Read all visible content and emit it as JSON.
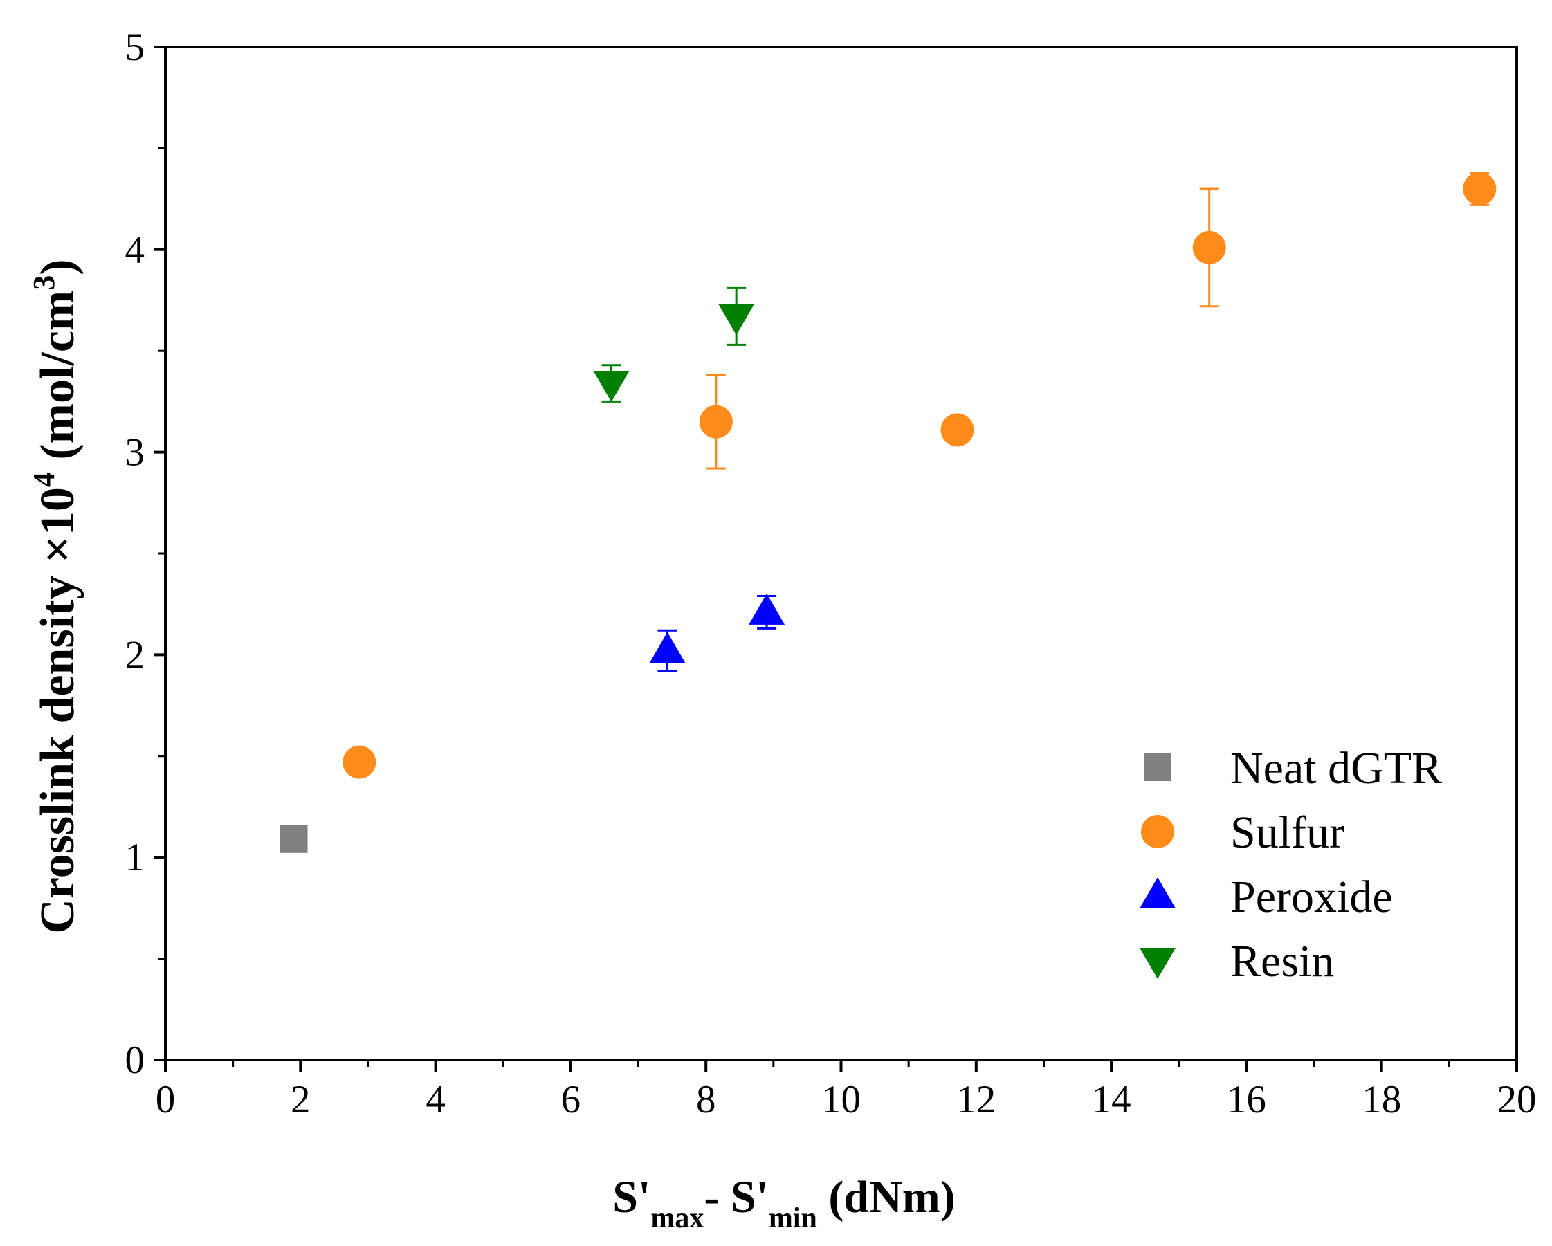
{
  "chart_data": {
    "type": "scatter",
    "xlabel": {
      "main": "S'",
      "sub1": "max",
      "mid": "- S'",
      "sub2": "min",
      "tail": " (dNm)"
    },
    "ylabel": {
      "main": "Crosslink density ×10",
      "sup1": "4",
      "mid": " (mol/cm",
      "sup2": "3",
      "tail": ")"
    },
    "xlim": [
      0,
      20
    ],
    "ylim": [
      0,
      5
    ],
    "x_ticks": [
      0,
      2,
      4,
      6,
      8,
      10,
      12,
      14,
      16,
      18,
      20
    ],
    "x_tick_labels": [
      "0",
      "2",
      "4",
      "6",
      "8",
      "10",
      "12",
      "14",
      "16",
      "18",
      "20"
    ],
    "y_ticks": [
      0,
      1,
      2,
      3,
      4,
      5
    ],
    "y_tick_labels": [
      "0",
      "1",
      "2",
      "3",
      "4",
      "5"
    ],
    "grid": false,
    "legend_position": "bottom-right",
    "series": [
      {
        "name": "Neat dGTR",
        "marker": "square",
        "color": "#808080",
        "points": [
          {
            "x": 1.9,
            "y": 1.09,
            "err": 0
          }
        ]
      },
      {
        "name": "Sulfur",
        "marker": "circle",
        "color": "#FF8C1A",
        "points": [
          {
            "x": 2.87,
            "y": 1.47,
            "err": 0
          },
          {
            "x": 8.15,
            "y": 3.15,
            "err": 0.23
          },
          {
            "x": 11.72,
            "y": 3.11,
            "err": 0.06
          },
          {
            "x": 15.45,
            "y": 4.01,
            "err": 0.29
          },
          {
            "x": 19.45,
            "y": 4.3,
            "err": 0.08
          }
        ]
      },
      {
        "name": "Peroxide",
        "marker": "triangle-up",
        "color": "#0000FF",
        "points": [
          {
            "x": 7.43,
            "y": 2.02,
            "err": 0.1
          },
          {
            "x": 8.9,
            "y": 2.21,
            "err": 0.08
          }
        ]
      },
      {
        "name": "Resin",
        "marker": "triangle-down",
        "color": "#008000",
        "points": [
          {
            "x": 6.6,
            "y": 3.34,
            "err": 0.09
          },
          {
            "x": 8.45,
            "y": 3.67,
            "err": 0.14
          }
        ]
      }
    ]
  }
}
